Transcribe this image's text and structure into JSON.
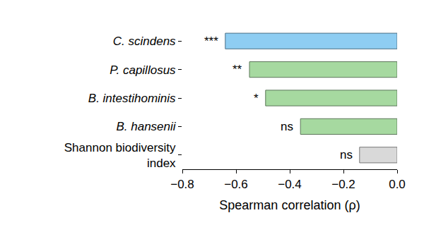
{
  "chart_data": {
    "type": "bar",
    "orientation": "horizontal",
    "categories": [
      "C. scindens",
      "P. capillosus",
      "B. intestihominis",
      "B. hansenii",
      "Shannon biodiversity index"
    ],
    "values": [
      -0.64,
      -0.55,
      -0.49,
      -0.36,
      -0.14
    ],
    "colors": [
      "#8ecdf2",
      "#a6d9a0",
      "#a6d9a0",
      "#a6d9a0",
      "#d9d9d9"
    ],
    "annotations": [
      "***",
      "**",
      "*",
      "ns",
      "ns"
    ],
    "x_label": "Spearman correlation (ρ)",
    "xlim": [
      -0.8,
      0
    ],
    "xticks": [
      {
        "value": -0.8,
        "label": "−0.8"
      },
      {
        "value": -0.6,
        "label": "−0.6"
      },
      {
        "value": -0.4,
        "label": "−0.4"
      },
      {
        "value": -0.2,
        "label": "−0.2"
      },
      {
        "value": 0,
        "label": "0.0"
      }
    ],
    "grid": false
  }
}
